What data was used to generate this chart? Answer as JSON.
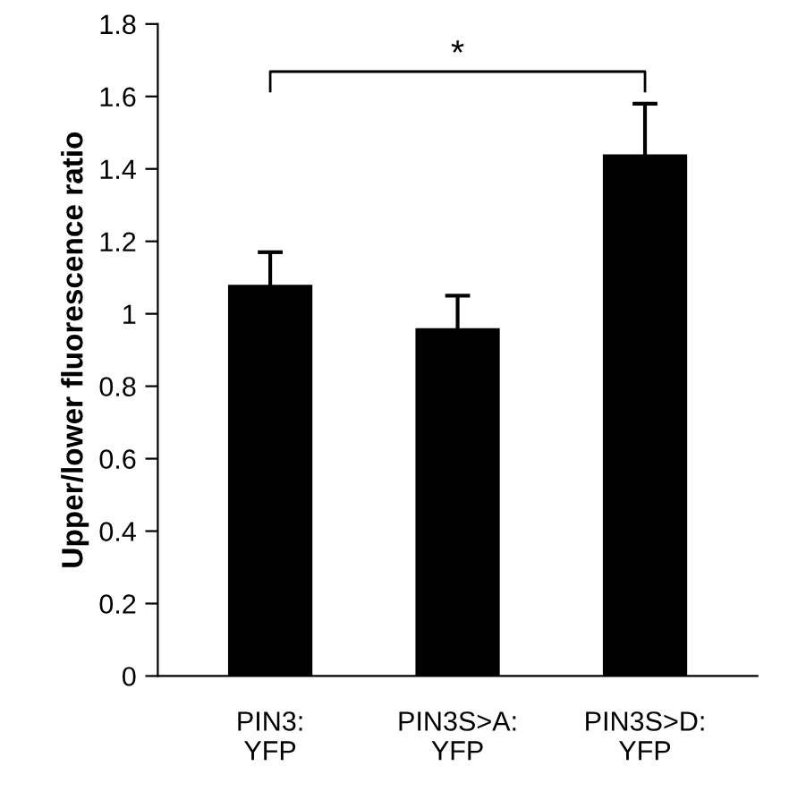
{
  "chart_data": {
    "type": "bar",
    "ylabel": "Upper/lower fluorescence ratio",
    "categories": [
      "PIN3:\nYFP",
      "PIN3S>A:\nYFP",
      "PIN3S>D:\nYFP"
    ],
    "values": [
      1.08,
      0.96,
      1.44
    ],
    "errors": [
      0.09,
      0.09,
      0.14
    ],
    "color": "#000000",
    "ylim": [
      0,
      1.8
    ],
    "yticks": [
      0,
      0.2,
      0.4,
      0.6,
      0.8,
      1,
      1.2,
      1.4,
      1.6,
      1.8
    ],
    "grid": false,
    "annotations": [
      "*"
    ]
  }
}
